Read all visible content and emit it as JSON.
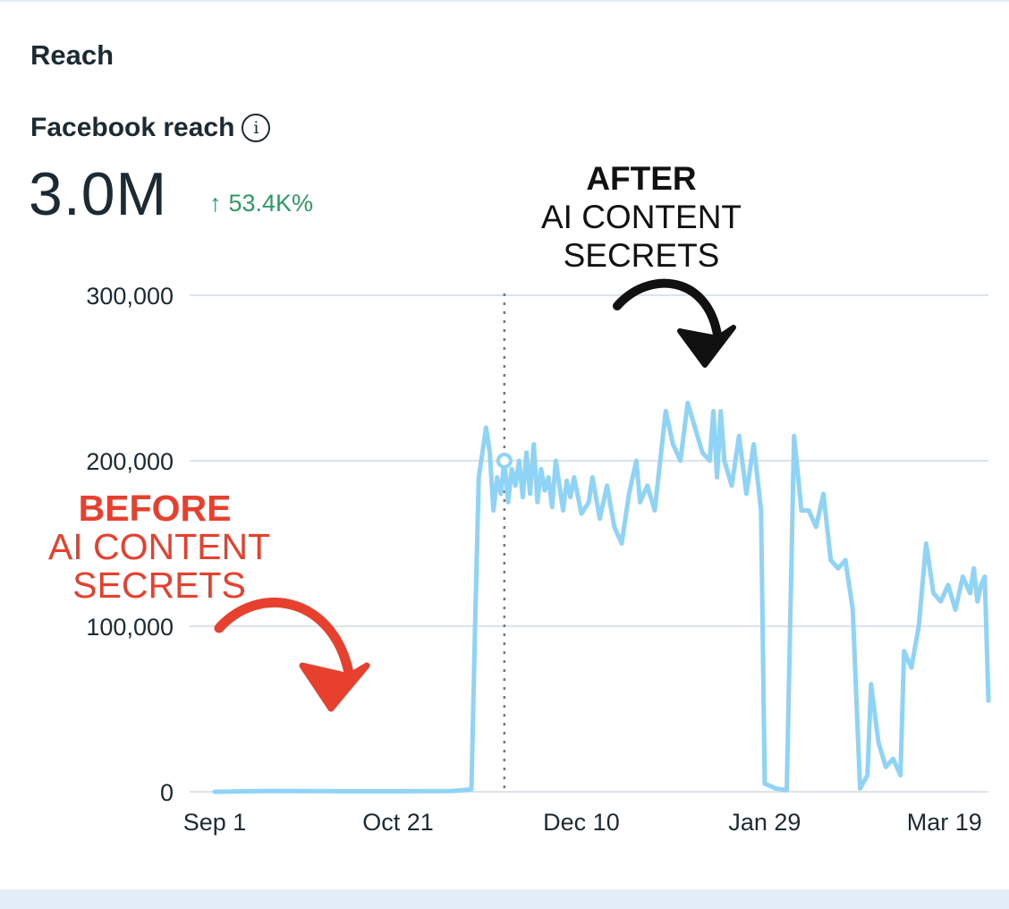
{
  "header": {
    "section_title": "Reach",
    "metric_label": "Facebook reach",
    "info_icon": "info-icon",
    "metric_value": "3.0M",
    "metric_change_arrow": "↑",
    "metric_change": "53.4K%",
    "change_color": "#2f9a63"
  },
  "annotations": {
    "after_title": "AFTER",
    "after_line1": "AI CONTENT",
    "after_line2": "SECRETS",
    "before_title": "BEFORE",
    "before_line1": "AI CONTENT",
    "before_line2": "SECRETS",
    "after_color": "#111111",
    "before_color": "#e8402f"
  },
  "chart_data": {
    "type": "line",
    "title": "",
    "xlabel": "",
    "ylabel": "",
    "ylim": [
      0,
      300000
    ],
    "y_ticks": [
      0,
      100000,
      200000,
      300000
    ],
    "y_tick_labels": [
      "0",
      "100,000",
      "200,000",
      "300,000"
    ],
    "x_tick_labels": [
      "Sep 1",
      "Oct 21",
      "Dec 10",
      "Jan 29",
      "Mar 19"
    ],
    "x_start": "Sep 1",
    "x_end": "Mar 31",
    "grid": true,
    "line_color": "#8fd3f7",
    "marker_date": "Nov 19",
    "series": [
      {
        "values": [
          [
            "Sep 1",
            0
          ],
          [
            "Sep 15",
            500
          ],
          [
            "Oct 1",
            400
          ],
          [
            "Oct 21",
            300
          ],
          [
            "Nov 5",
            500
          ],
          [
            "Nov 10",
            1500
          ],
          [
            "Nov 11",
            100000
          ],
          [
            "Nov 12",
            190000
          ],
          [
            "Nov 13",
            205000
          ],
          [
            "Nov 14",
            220000
          ],
          [
            "Nov 15",
            205000
          ],
          [
            "Nov 16",
            170000
          ],
          [
            "Nov 17",
            190000
          ],
          [
            "Nov 18",
            180000
          ],
          [
            "Nov 19",
            200000
          ],
          [
            "Nov 20",
            175000
          ],
          [
            "Nov 21",
            195000
          ],
          [
            "Nov 22",
            185000
          ],
          [
            "Nov 23",
            200000
          ],
          [
            "Nov 24",
            178000
          ],
          [
            "Nov 25",
            205000
          ],
          [
            "Nov 26",
            180000
          ],
          [
            "Nov 27",
            210000
          ],
          [
            "Nov 28",
            175000
          ],
          [
            "Nov 29",
            195000
          ],
          [
            "Nov 30",
            182000
          ],
          [
            "Dec 1",
            190000
          ],
          [
            "Dec 2",
            172000
          ],
          [
            "Dec 3",
            200000
          ],
          [
            "Dec 4",
            185000
          ],
          [
            "Dec 5",
            170000
          ],
          [
            "Dec 6",
            188000
          ],
          [
            "Dec 7",
            178000
          ],
          [
            "Dec 8",
            190000
          ],
          [
            "Dec 10",
            168000
          ],
          [
            "Dec 12",
            175000
          ],
          [
            "Dec 13",
            190000
          ],
          [
            "Dec 15",
            165000
          ],
          [
            "Dec 17",
            185000
          ],
          [
            "Dec 19",
            160000
          ],
          [
            "Dec 21",
            150000
          ],
          [
            "Dec 23",
            180000
          ],
          [
            "Dec 25",
            200000
          ],
          [
            "Dec 26",
            175000
          ],
          [
            "Dec 28",
            185000
          ],
          [
            "Dec 30",
            170000
          ],
          [
            "Jan 2",
            230000
          ],
          [
            "Jan 4",
            210000
          ],
          [
            "Jan 6",
            200000
          ],
          [
            "Jan 8",
            235000
          ],
          [
            "Jan 10",
            220000
          ],
          [
            "Jan 12",
            205000
          ],
          [
            "Jan 14",
            200000
          ],
          [
            "Jan 15",
            230000
          ],
          [
            "Jan 16",
            190000
          ],
          [
            "Jan 17",
            230000
          ],
          [
            "Jan 18",
            200000
          ],
          [
            "Jan 20",
            185000
          ],
          [
            "Jan 22",
            215000
          ],
          [
            "Jan 24",
            180000
          ],
          [
            "Jan 26",
            210000
          ],
          [
            "Jan 28",
            170000
          ],
          [
            "Jan 29",
            5000
          ],
          [
            "Feb 1",
            2000
          ],
          [
            "Feb 4",
            1000
          ],
          [
            "Feb 6",
            215000
          ],
          [
            "Feb 8",
            170000
          ],
          [
            "Feb 10",
            170000
          ],
          [
            "Feb 12",
            160000
          ],
          [
            "Feb 14",
            180000
          ],
          [
            "Feb 16",
            140000
          ],
          [
            "Feb 18",
            135000
          ],
          [
            "Feb 20",
            140000
          ],
          [
            "Feb 22",
            110000
          ],
          [
            "Feb 24",
            2000
          ],
          [
            "Feb 26",
            10000
          ],
          [
            "Feb 27",
            65000
          ],
          [
            "Mar 1",
            30000
          ],
          [
            "Mar 3",
            15000
          ],
          [
            "Mar 5",
            20000
          ],
          [
            "Mar 7",
            10000
          ],
          [
            "Mar 8",
            85000
          ],
          [
            "Mar 10",
            75000
          ],
          [
            "Mar 12",
            100000
          ],
          [
            "Mar 14",
            150000
          ],
          [
            "Mar 16",
            120000
          ],
          [
            "Mar 18",
            115000
          ],
          [
            "Mar 20",
            125000
          ],
          [
            "Mar 22",
            110000
          ],
          [
            "Mar 24",
            130000
          ],
          [
            "Mar 26",
            120000
          ],
          [
            "Mar 27",
            135000
          ],
          [
            "Mar 28",
            115000
          ],
          [
            "Mar 29",
            125000
          ],
          [
            "Mar 30",
            130000
          ],
          [
            "Mar 31",
            55000
          ]
        ]
      }
    ]
  }
}
